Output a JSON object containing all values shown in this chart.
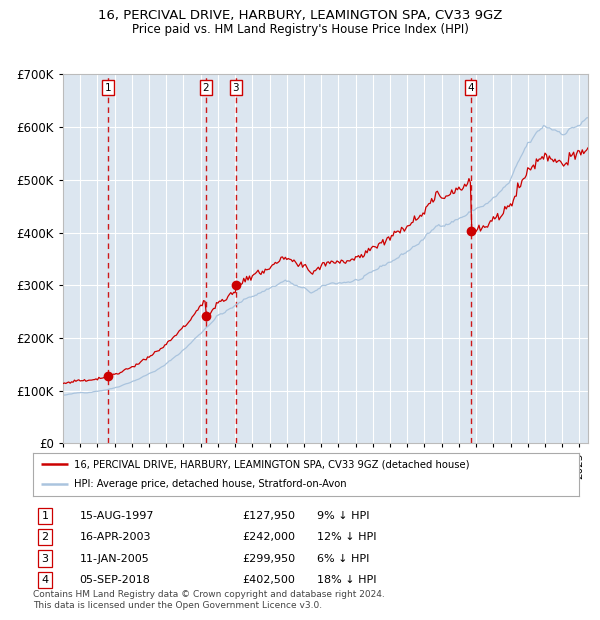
{
  "title": "16, PERCIVAL DRIVE, HARBURY, LEAMINGTON SPA, CV33 9GZ",
  "subtitle": "Price paid vs. HM Land Registry's House Price Index (HPI)",
  "legend_line1": "16, PERCIVAL DRIVE, HARBURY, LEAMINGTON SPA, CV33 9GZ (detached house)",
  "legend_line2": "HPI: Average price, detached house, Stratford-on-Avon",
  "footer1": "Contains HM Land Registry data © Crown copyright and database right 2024.",
  "footer2": "This data is licensed under the Open Government Licence v3.0.",
  "transactions": [
    {
      "num": 1,
      "date": "15-AUG-1997",
      "price": 127950,
      "pct": "9%",
      "dir": "↓"
    },
    {
      "num": 2,
      "date": "16-APR-2003",
      "price": 242000,
      "pct": "12%",
      "dir": "↓"
    },
    {
      "num": 3,
      "date": "11-JAN-2005",
      "price": 299950,
      "pct": "6%",
      "dir": "↓"
    },
    {
      "num": 4,
      "date": "05-SEP-2018",
      "price": 402500,
      "pct": "18%",
      "dir": "↓"
    }
  ],
  "sale_dates_decimal": [
    1997.617,
    2003.289,
    2005.036,
    2018.678
  ],
  "sale_prices": [
    127950,
    242000,
    299950,
    402500
  ],
  "hpi_color": "#aac4de",
  "price_color": "#cc0000",
  "sale_marker_color": "#cc0000",
  "vline_color": "#cc0000",
  "plot_bg_color": "#dce6f0",
  "grid_color": "#ffffff",
  "ylim": [
    0,
    700000
  ],
  "xlim_start": 1995.0,
  "xlim_end": 2025.5
}
